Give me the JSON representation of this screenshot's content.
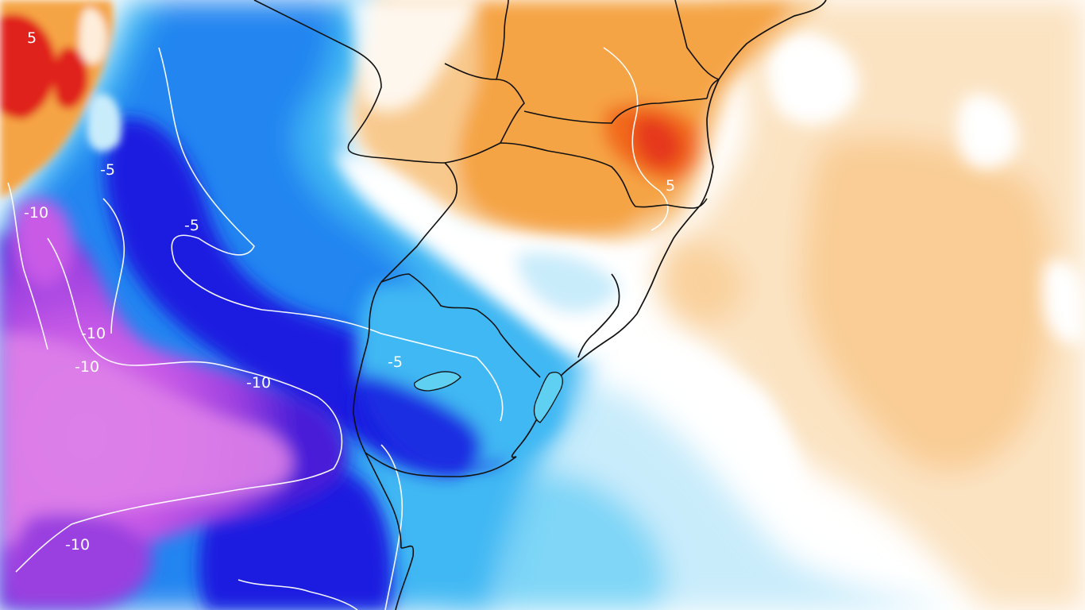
{
  "map": {
    "type": "temperature-anomaly",
    "region": "southern-south-america",
    "contour_labels": [
      "5",
      "-5",
      "-10",
      "-5",
      "-10",
      "-10",
      "-10",
      "-5",
      "5",
      "-10"
    ],
    "palette": {
      "deep_red": "#e0241e",
      "red_orange": "#f26a1b",
      "orange": "#f5a445",
      "light_orange": "#f8c98d",
      "pale_orange": "#fbe3c2",
      "white": "#ffffff",
      "pale_blue": "#c9ecfb",
      "light_blue": "#7fd6f7",
      "sky_blue": "#3fb8f3",
      "blue": "#1e7bef",
      "deep_blue": "#1a1fe0",
      "indigo": "#4a1fd8",
      "violet": "#9a3fe0",
      "magenta": "#c85ae6",
      "pink_violet": "#dd7fe8",
      "isoline": "#ffffff",
      "border": "#111111"
    }
  }
}
